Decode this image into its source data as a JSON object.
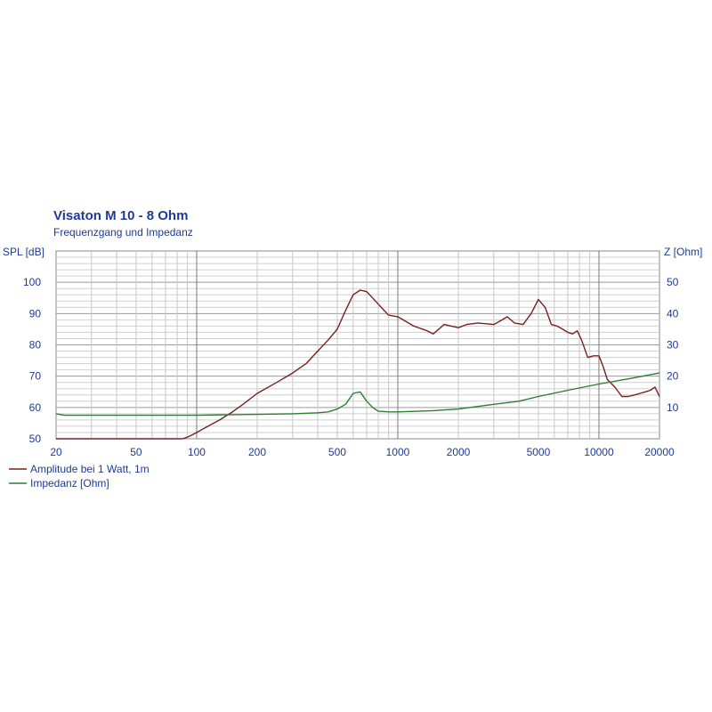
{
  "chart_data": {
    "type": "line",
    "title": "Visaton M 10 - 8 Ohm",
    "subtitle": "Frequenzgang und Impedanz",
    "x_scale": "log",
    "xlim": [
      20,
      20000
    ],
    "x_ticks": [
      20,
      50,
      100,
      200,
      500,
      1000,
      2000,
      5000,
      10000,
      20000
    ],
    "x_tick_labels": [
      "20",
      "50",
      "100",
      "200",
      "500",
      "1000",
      "2000",
      "5000",
      "10000",
      "20000"
    ],
    "y_left": {
      "label": "SPL [dB]",
      "lim": [
        50,
        110
      ],
      "ticks": [
        50,
        60,
        70,
        80,
        90,
        100
      ],
      "tick_labels": [
        "50",
        "60",
        "70",
        "80",
        "90",
        "100"
      ]
    },
    "y_right": {
      "label": "Z [Ohm]",
      "lim": [
        0,
        60
      ],
      "ticks": [
        10,
        20,
        30,
        40,
        50
      ],
      "tick_labels": [
        "10",
        "20",
        "30",
        "40",
        "50"
      ]
    },
    "grid": true,
    "legend_position": "bottom-left",
    "series": [
      {
        "name": "Amplitude bei 1 Watt, 1m",
        "color": "#7a1f1f",
        "axis": "left",
        "x": [
          20,
          50,
          85,
          90,
          100,
          110,
          130,
          150,
          170,
          200,
          250,
          300,
          350,
          400,
          450,
          500,
          550,
          600,
          650,
          700,
          750,
          800,
          900,
          1000,
          1200,
          1400,
          1500,
          1700,
          2000,
          2200,
          2500,
          3000,
          3300,
          3500,
          3800,
          4200,
          4600,
          5000,
          5400,
          5800,
          6200,
          6600,
          7000,
          7400,
          7800,
          8200,
          8800,
          9400,
          10000,
          10500,
          11000,
          12000,
          13000,
          14000,
          15000,
          16000,
          17000,
          18000,
          19000,
          20000
        ],
        "y": [
          50,
          50,
          50,
          50.5,
          52,
          53.5,
          56,
          58.5,
          61,
          64.5,
          68,
          71,
          74,
          78,
          81.5,
          85,
          91,
          96,
          97.5,
          97,
          95,
          93,
          89.5,
          89,
          86,
          84.5,
          83.5,
          86.5,
          85.5,
          86.5,
          87,
          86.5,
          88,
          89,
          87,
          86.5,
          90,
          94.5,
          92,
          86.5,
          86,
          85,
          84,
          83.5,
          84.5,
          81.5,
          76,
          76.5,
          76.5,
          73,
          69,
          66.5,
          63.5,
          63.5,
          64,
          64.5,
          65,
          65.5,
          66.5,
          63.5
        ]
      },
      {
        "name": "Impedanz [Ohm]",
        "color": "#2e7d32",
        "axis": "right",
        "x": [
          20,
          22,
          50,
          100,
          150,
          200,
          300,
          400,
          450,
          500,
          550,
          600,
          650,
          700,
          750,
          800,
          900,
          1000,
          1500,
          2000,
          3000,
          4000,
          5000,
          7000,
          10000,
          15000,
          20000
        ],
        "y": [
          8,
          7.5,
          7.5,
          7.5,
          7.7,
          7.8,
          8,
          8.3,
          8.6,
          9.5,
          11,
          14.5,
          15,
          12,
          10,
          8.8,
          8.6,
          8.6,
          9,
          9.5,
          11,
          12,
          13.5,
          15.5,
          17.5,
          19.5,
          21
        ]
      }
    ]
  }
}
